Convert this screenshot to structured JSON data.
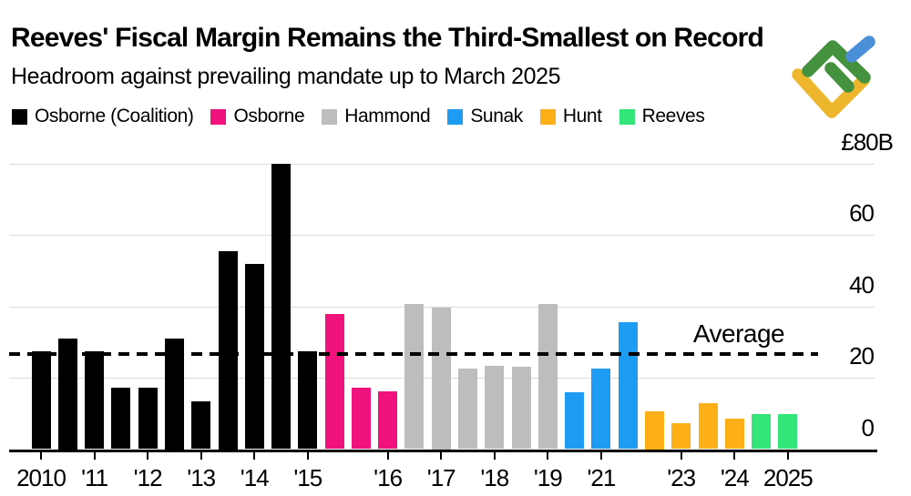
{
  "header": {
    "title": "Reeves' Fiscal Margin Remains the Third-Smallest on Record",
    "subtitle": "Headroom against prevailing mandate up to March 2025"
  },
  "legend": [
    {
      "label": "Osborne (Coalition)",
      "color": "#000000"
    },
    {
      "label": "Osborne",
      "color": "#f0137d"
    },
    {
      "label": "Hammond",
      "color": "#bdbdbd"
    },
    {
      "label": "Sunak",
      "color": "#1e9bf2"
    },
    {
      "label": "Hunt",
      "color": "#fcaf17"
    },
    {
      "label": "Reeves",
      "color": "#34e57a"
    }
  ],
  "logo": {
    "green": "#44913e",
    "blue": "#4a90d9",
    "yellow": "#edb62d"
  },
  "chart_data": {
    "type": "bar",
    "title": "Reeves' Fiscal Margin Remains the Third-Smallest on Record",
    "subtitle": "Headroom against prevailing mandate up to March 2025",
    "unit": "£B",
    "ylim": [
      0,
      80
    ],
    "grid": "horizontal",
    "legend_position": "top",
    "y_ticks": [
      {
        "label": "£80B",
        "value": 80
      },
      {
        "label": "60",
        "value": 60
      },
      {
        "label": "40",
        "value": 40
      },
      {
        "label": "20",
        "value": 20
      },
      {
        "label": "0",
        "value": 0
      }
    ],
    "average_line": {
      "label": "Average",
      "value": 26.7
    },
    "bars": [
      {
        "group": "Osborne (Coalition)",
        "value": 27.5,
        "tick": "2010"
      },
      {
        "group": "Osborne (Coalition)",
        "value": 31
      },
      {
        "group": "Osborne (Coalition)",
        "value": 27.5,
        "tick": "'11"
      },
      {
        "group": "Osborne (Coalition)",
        "value": 17.3
      },
      {
        "group": "Osborne (Coalition)",
        "value": 17.3,
        "tick": "'12"
      },
      {
        "group": "Osborne (Coalition)",
        "value": 31
      },
      {
        "group": "Osborne (Coalition)",
        "value": 13.5,
        "tick": "'13"
      },
      {
        "group": "Osborne (Coalition)",
        "value": 55.5
      },
      {
        "group": "Osborne (Coalition)",
        "value": 52,
        "tick": "'14"
      },
      {
        "group": "Osborne (Coalition)",
        "value": 79.9
      },
      {
        "group": "Osborne (Coalition)",
        "value": 27.5,
        "tick": "'15"
      },
      {
        "group": "Osborne",
        "value": 38
      },
      {
        "group": "Osborne",
        "value": 17.3
      },
      {
        "group": "Osborne",
        "value": 16.3,
        "tick": "'16"
      },
      {
        "group": "Hammond",
        "value": 40.6
      },
      {
        "group": "Hammond",
        "value": 39.8,
        "tick": "'17"
      },
      {
        "group": "Hammond",
        "value": 22.6
      },
      {
        "group": "Hammond",
        "value": 23.4,
        "tick": "'18"
      },
      {
        "group": "Hammond",
        "value": 23
      },
      {
        "group": "Hammond",
        "value": 40.6,
        "tick": "'19"
      },
      {
        "group": "Sunak",
        "value": 16
      },
      {
        "group": "Sunak",
        "value": 22.5,
        "tick": "'21"
      },
      {
        "group": "Sunak",
        "value": 35.5
      },
      {
        "group": "Hunt",
        "value": 10.6
      },
      {
        "group": "Hunt",
        "value": 7.3,
        "tick": "'23"
      },
      {
        "group": "Hunt",
        "value": 12.8
      },
      {
        "group": "Hunt",
        "value": 8.5,
        "tick": "'24"
      },
      {
        "group": "Reeves",
        "value": 9.9
      },
      {
        "group": "Reeves",
        "value": 9.9,
        "tick": "2025"
      }
    ]
  }
}
